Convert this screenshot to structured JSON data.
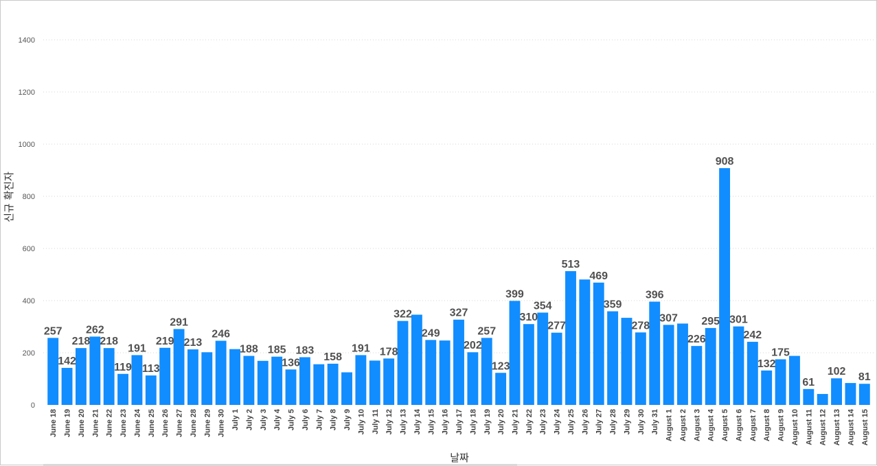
{
  "chart_data": {
    "type": "bar",
    "xlabel": "날짜",
    "ylabel": "신규 확진자",
    "ylim": [
      0,
      1400
    ],
    "yticks": [
      0,
      200,
      400,
      600,
      800,
      1000,
      1200,
      1400
    ],
    "grid": true,
    "color": "#118DFF",
    "categories": [
      "June 18",
      "June 19",
      "June 20",
      "June 21",
      "June 22",
      "June 23",
      "June 24",
      "June 25",
      "June 26",
      "June 27",
      "June 28",
      "June 29",
      "June 30",
      "July 1",
      "July 2",
      "July 3",
      "July 4",
      "July 5",
      "July 6",
      "July 7",
      "July 8",
      "July 9",
      "July 10",
      "July 11",
      "July 12",
      "July 13",
      "July 14",
      "July 15",
      "July 16",
      "July 17",
      "July 18",
      "July 19",
      "July 20",
      "July 21",
      "July 22",
      "July 23",
      "July 24",
      "July 25",
      "July 26",
      "July 27",
      "July 28",
      "July 29",
      "July 30",
      "July 31",
      "August 1",
      "August 2",
      "August 3",
      "August 4",
      "August 5",
      "August 6",
      "August 7",
      "August 8",
      "August 9",
      "August 10",
      "August 11",
      "August 12",
      "August 13",
      "August 14",
      "August 15"
    ],
    "values": [
      257,
      142,
      218,
      262,
      218,
      119,
      191,
      113,
      219,
      291,
      213,
      202,
      246,
      214,
      188,
      169,
      185,
      136,
      183,
      156,
      158,
      125,
      191,
      170,
      178,
      322,
      346,
      249,
      247,
      327,
      202,
      257,
      123,
      399,
      310,
      354,
      277,
      513,
      481,
      469,
      359,
      334,
      278,
      396,
      307,
      312,
      226,
      295,
      908,
      301,
      242,
      132,
      175,
      188,
      61,
      42,
      102,
      84,
      81
    ],
    "labeled": [
      true,
      true,
      true,
      true,
      true,
      true,
      true,
      true,
      true,
      true,
      true,
      false,
      true,
      false,
      true,
      false,
      true,
      true,
      true,
      false,
      true,
      false,
      true,
      false,
      true,
      true,
      false,
      true,
      false,
      true,
      true,
      true,
      true,
      true,
      true,
      true,
      true,
      true,
      false,
      true,
      true,
      false,
      true,
      true,
      true,
      false,
      true,
      true,
      true,
      true,
      true,
      true,
      true,
      false,
      true,
      false,
      true,
      false,
      true
    ]
  }
}
